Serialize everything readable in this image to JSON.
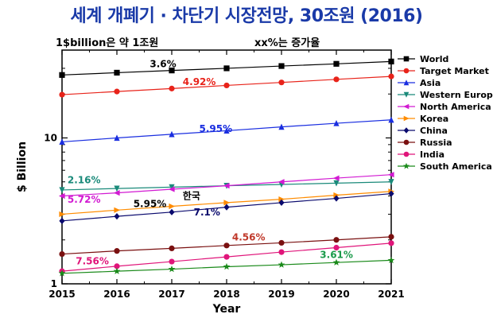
{
  "chart_data": {
    "type": "line",
    "title": "세계 개폐기 · 차단기 시장전망, 30조원 (2016)",
    "note_left": "1$billion은 약 1조원",
    "note_right": "xx%는 증가율",
    "xlabel": "Year",
    "ylabel": "$ Billion",
    "yscale": "log",
    "ylim": [
      1,
      40
    ],
    "xlim": [
      2015,
      2021
    ],
    "x": [
      2015,
      2016,
      2017,
      2018,
      2019,
      2020,
      2021
    ],
    "y_ticks": [
      1,
      10
    ],
    "legend_position": "right",
    "series": [
      {
        "name": "World",
        "color": "#000000",
        "marker": "square",
        "values": [
          27.0,
          28.0,
          29.0,
          30.0,
          31.1,
          32.2,
          33.4
        ]
      },
      {
        "name": "Target Market",
        "color": "#e8231a",
        "marker": "circle",
        "values": [
          19.8,
          20.8,
          21.8,
          22.9,
          24.0,
          25.2,
          26.4
        ]
      },
      {
        "name": "Asia",
        "color": "#1a2ee0",
        "marker": "triangle-up",
        "values": [
          9.4,
          10.0,
          10.6,
          11.2,
          11.9,
          12.6,
          13.3
        ]
      },
      {
        "name": "Western Europe",
        "color": "#1a8a7a",
        "marker": "triangle-down",
        "values": [
          4.4,
          4.5,
          4.6,
          4.7,
          4.8,
          4.9,
          5.0
        ]
      },
      {
        "name": "North America",
        "color": "#d21ad2",
        "marker": "triangle-left",
        "values": [
          4.0,
          4.2,
          4.45,
          4.7,
          5.0,
          5.3,
          5.6
        ]
      },
      {
        "name": "Korea",
        "color": "#ff8c00",
        "marker": "triangle-right",
        "values": [
          3.0,
          3.2,
          3.4,
          3.6,
          3.8,
          4.05,
          4.3
        ]
      },
      {
        "name": "China",
        "color": "#0a0a6e",
        "marker": "diamond",
        "values": [
          2.7,
          2.9,
          3.1,
          3.35,
          3.6,
          3.85,
          4.15
        ]
      },
      {
        "name": "Russia",
        "color": "#7a1010",
        "marker": "circle",
        "values": [
          1.6,
          1.68,
          1.75,
          1.83,
          1.91,
          2.0,
          2.1
        ]
      },
      {
        "name": "India",
        "color": "#e0157a",
        "marker": "circle",
        "values": [
          1.22,
          1.32,
          1.42,
          1.53,
          1.65,
          1.77,
          1.9
        ]
      },
      {
        "name": "South America",
        "color": "#1a8a1a",
        "marker": "star",
        "values": [
          1.18,
          1.22,
          1.26,
          1.31,
          1.35,
          1.4,
          1.45
        ]
      }
    ],
    "annotations": [
      {
        "text": "3.6%",
        "color": "#000000",
        "x": 2016.6,
        "y": 30.5
      },
      {
        "text": "4.92%",
        "color": "#e8231a",
        "x": 2017.2,
        "y": 23.0
      },
      {
        "text": "5.95%",
        "color": "#1a2ee0",
        "x": 2017.5,
        "y": 11.0
      },
      {
        "text": "2.16%",
        "color": "#1a8a7a",
        "x": 2015.1,
        "y": 4.9
      },
      {
        "text": "5.72%",
        "color": "#d21ad2",
        "x": 2015.1,
        "y": 3.6
      },
      {
        "text": "5.95%",
        "color": "#000000",
        "x": 2016.3,
        "y": 3.35
      },
      {
        "text": "한국",
        "color": "#000000",
        "x": 2017.2,
        "y": 3.8
      },
      {
        "text": "7.1%",
        "color": "#0a0a6e",
        "x": 2017.4,
        "y": 2.95
      },
      {
        "text": "4.56%",
        "color": "#c0392b",
        "x": 2018.1,
        "y": 1.98
      },
      {
        "text": "7.56%",
        "color": "#e0157a",
        "x": 2015.25,
        "y": 1.36
      },
      {
        "text": "3.61%",
        "color": "#1a9a4a",
        "x": 2019.7,
        "y": 1.5
      }
    ]
  }
}
